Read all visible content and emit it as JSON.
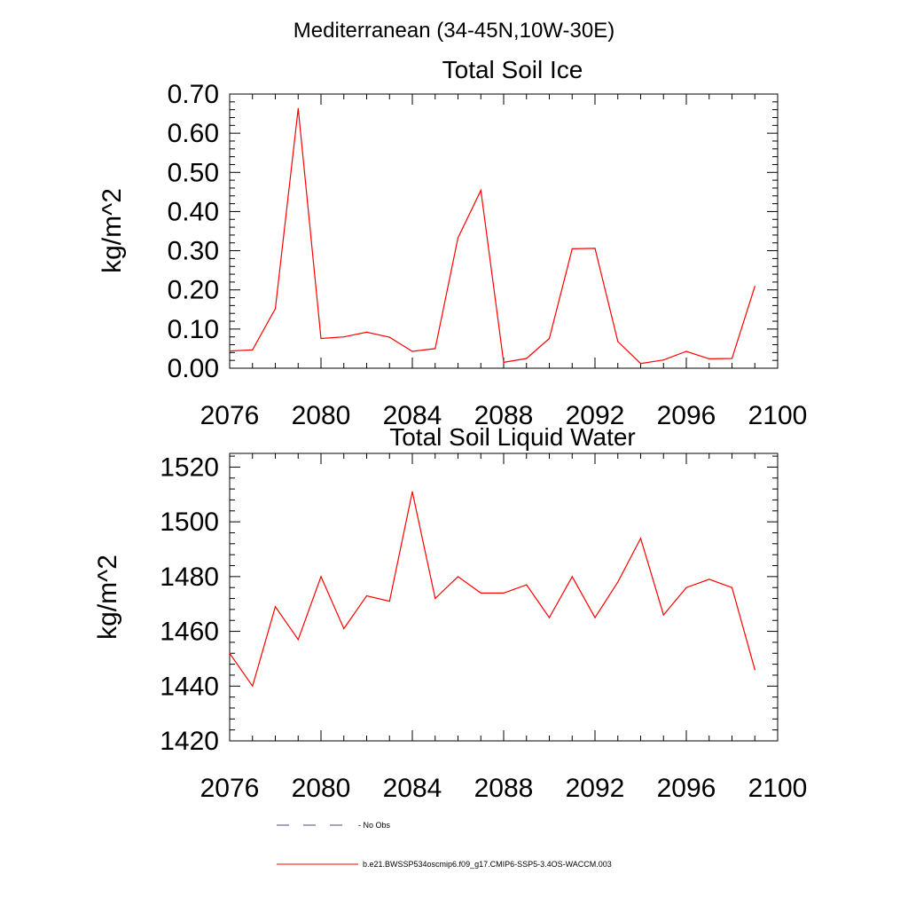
{
  "figure_title": "Mediterranean (34-45N,10W-30E)",
  "legend": {
    "items": [
      {
        "label": "No Obs",
        "style": "dashed",
        "color": "#4a4a7a"
      },
      {
        "label": "b.e21.BWSSP534oscmip6.f09_g17.CMIP6-SSP5-3.4OS-WACCM.003",
        "style": "solid",
        "color": "#ff0000"
      }
    ]
  },
  "chart_data": [
    {
      "type": "line",
      "title": "Total Soil Ice",
      "xlabel": "",
      "ylabel": "kg/m^2",
      "xlim": [
        2076,
        2100
      ],
      "ylim": [
        0.0,
        0.7
      ],
      "xticks": [
        2076,
        2080,
        2084,
        2088,
        2092,
        2096,
        2100
      ],
      "yticks": [
        "0.00",
        "0.10",
        "0.20",
        "0.30",
        "0.40",
        "0.50",
        "0.60",
        "0.70"
      ],
      "ytick_values": [
        0.0,
        0.1,
        0.2,
        0.3,
        0.4,
        0.5,
        0.6,
        0.7
      ],
      "series": [
        {
          "name": "b.e21.BWSSP534oscmip6.f09_g17.CMIP6-SSP5-3.4OS-WACCM.003",
          "color": "#ff0000",
          "x": [
            2076,
            2077,
            2078,
            2079,
            2080,
            2081,
            2082,
            2083,
            2084,
            2085,
            2086,
            2087,
            2088,
            2089,
            2090,
            2091,
            2092,
            2093,
            2094,
            2095,
            2096,
            2097,
            2098,
            2099
          ],
          "values": [
            0.044,
            0.047,
            0.152,
            0.663,
            0.076,
            0.08,
            0.092,
            0.079,
            0.043,
            0.05,
            0.333,
            0.454,
            0.015,
            0.025,
            0.076,
            0.305,
            0.306,
            0.068,
            0.012,
            0.021,
            0.043,
            0.024,
            0.025,
            0.209
          ]
        }
      ]
    },
    {
      "type": "line",
      "title": "Total Soil Liquid Water",
      "xlabel": "",
      "ylabel": "kg/m^2",
      "xlim": [
        2076,
        2100
      ],
      "ylim": [
        1420,
        1525
      ],
      "xticks": [
        2076,
        2080,
        2084,
        2088,
        2092,
        2096,
        2100
      ],
      "yticks": [
        "1420",
        "1440",
        "1460",
        "1480",
        "1500",
        "1520"
      ],
      "ytick_values": [
        1420,
        1440,
        1460,
        1480,
        1500,
        1520
      ],
      "series": [
        {
          "name": "b.e21.BWSSP534oscmip6.f09_g17.CMIP6-SSP5-3.4OS-WACCM.003",
          "color": "#ff0000",
          "x": [
            2076,
            2077,
            2078,
            2079,
            2080,
            2081,
            2082,
            2083,
            2084,
            2085,
            2086,
            2087,
            2088,
            2089,
            2090,
            2091,
            2092,
            2093,
            2094,
            2095,
            2096,
            2097,
            2098,
            2099
          ],
          "values": [
            1452,
            1440,
            1469,
            1457,
            1480,
            1461,
            1473,
            1471,
            1511,
            1472,
            1480,
            1474,
            1474,
            1477,
            1465,
            1480,
            1465,
            1478,
            1494,
            1466,
            1476,
            1479,
            1476,
            1446
          ]
        }
      ]
    }
  ]
}
